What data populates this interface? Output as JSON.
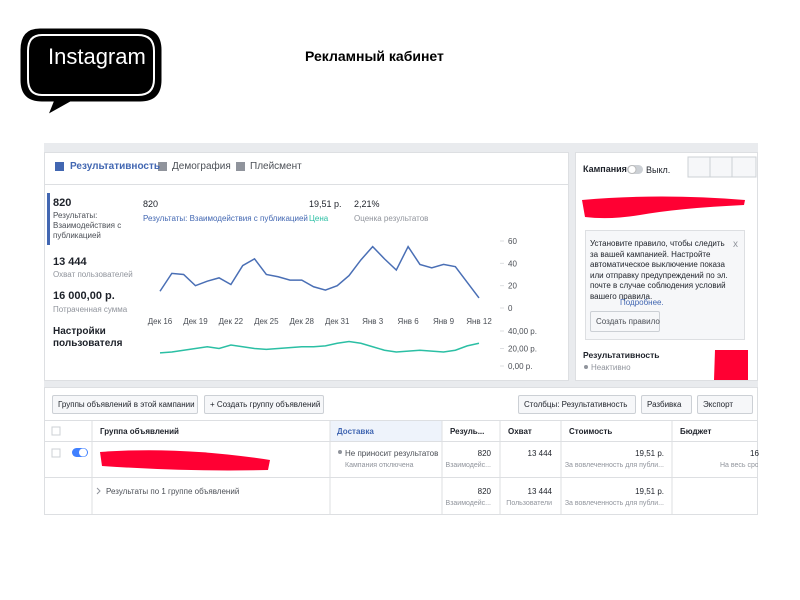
{
  "header": {
    "brand": "Instagram",
    "title": "Рекламный кабинет"
  },
  "tabs": [
    "Результативность",
    "Демография",
    "Плейсмент"
  ],
  "metrics": [
    {
      "value": "820",
      "label": "Результаты: Взаимодействия с публикацией"
    },
    {
      "value": "13 444",
      "label": "Охват пользователей"
    },
    {
      "value": "16 000,00 р.",
      "label": "Потраченная сумма"
    }
  ],
  "settings": "Настройки пользователя",
  "summary": [
    {
      "value": "820",
      "label": "Результаты: Взаимодействия с публикацией"
    },
    {
      "value": "19,51 р.",
      "label": "Цена"
    },
    {
      "value": "2,21%",
      "label": "Оценка результатов"
    }
  ],
  "chart_data": [
    {
      "type": "line",
      "categories": [
        "Дек 16",
        null,
        null,
        "Дек 19",
        null,
        null,
        "Дек 22",
        null,
        null,
        "Дек 25",
        null,
        null,
        "Дек 28",
        null,
        null,
        "Дек 31",
        null,
        null,
        "Янв 3",
        null,
        null,
        "Янв 6",
        null,
        null,
        "Янв 9",
        null,
        null,
        "Янв 12"
      ],
      "series": [
        {
          "name": "Результаты: Взаимодействия с публикацией",
          "color": "#4a6fb5",
          "values": [
            15,
            31,
            30,
            20,
            24,
            27,
            21,
            38,
            44,
            30,
            28,
            25,
            25,
            19,
            16,
            20,
            29,
            43,
            55,
            44,
            34,
            55,
            39,
            36,
            39,
            37,
            23,
            9
          ]
        }
      ],
      "ylim": [
        0,
        60
      ],
      "yticks": [
        0,
        20,
        40,
        60
      ],
      "grid": false
    },
    {
      "type": "line",
      "series": [
        {
          "name": "Цена",
          "color": "#2bbfa4",
          "values": [
            15,
            16,
            18,
            20,
            22,
            20,
            24,
            22,
            20,
            19,
            20,
            21,
            22,
            22,
            23,
            26,
            28,
            26,
            22,
            18,
            16,
            17,
            18,
            17,
            16,
            18,
            23,
            26
          ]
        }
      ],
      "ylim": [
        0,
        40
      ],
      "yticks": [
        {
          "value": 0,
          "label": "0,00 р."
        },
        {
          "value": 20,
          "label": "20,00 р."
        },
        {
          "value": 40,
          "label": "40,00 р."
        }
      ],
      "grid": false
    }
  ],
  "sidebar": {
    "campaign": "Кампания",
    "toggle": "Выкл.",
    "notice": "Установите правило, чтобы следить за вашей кампанией. Настройте автоматическое выключение показа или отправку предупреждений по эл. почте в случае соблюдения условий вашего правила.",
    "link": "Подробнее.",
    "close": "x",
    "button": "Создать правило",
    "perf_title": "Результативность",
    "perf_status": "Неактивно"
  },
  "toolbar": {
    "left": [
      "Группы объявлений в этой кампании",
      "+ Создать группу объявлений"
    ],
    "right": [
      "Столбцы: Результативность",
      "Разбивка",
      "Экспорт"
    ]
  },
  "table": {
    "columns": [
      "Группа объявлений",
      "Доставка",
      "Резуль...",
      "Охват",
      "Стоимость",
      "Бюджет"
    ],
    "rows": [
      {
        "delivery": "Не приносит результатов",
        "delivery_sub": "Кампания отключена",
        "results": "820",
        "results_sub": "Взаимодейс...",
        "reach": "13 444",
        "cost": "19,51 р.",
        "cost_sub": "За вовлеченность для публи...",
        "budget": "16",
        "budget_sub": "На весь срок"
      },
      {
        "name": "Результаты по 1 группе объявлений",
        "results": "820",
        "results_sub": "Взаимодейс...",
        "reach": "13 444",
        "reach_sub": "Пользователи",
        "cost": "19,51 р.",
        "cost_sub": "За вовлеченность для публи..."
      }
    ]
  }
}
